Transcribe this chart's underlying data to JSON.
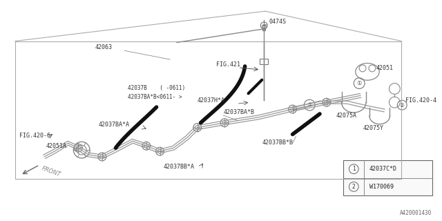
{
  "bg_color": "#ffffff",
  "fig_number": "A420001430",
  "legend_items": [
    {
      "symbol": "1",
      "part": "42037C*D"
    },
    {
      "symbol": "2",
      "part": "W170069"
    }
  ],
  "lc": "#aaaaaa",
  "pc": "#888888",
  "bc": "#111111",
  "tc": "#333333"
}
